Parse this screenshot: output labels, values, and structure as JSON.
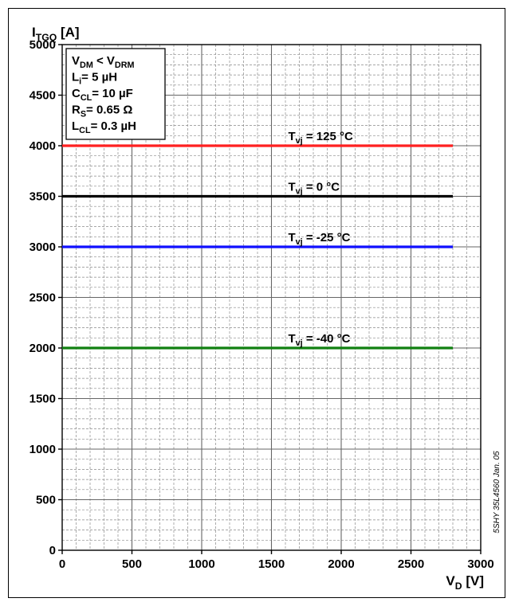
{
  "chart_data": {
    "type": "line",
    "y_title": {
      "main": "I",
      "sub": "TGQ",
      "unit": " [A]"
    },
    "x_title": {
      "main": "V",
      "sub": "D",
      "unit": " [V]"
    },
    "xlim": [
      0,
      3000
    ],
    "ylim": [
      0,
      5000
    ],
    "x_ticks": [
      "0",
      "500",
      "1000",
      "1500",
      "2000",
      "2500",
      "3000"
    ],
    "y_ticks": [
      "0",
      "500",
      "1000",
      "1500",
      "2000",
      "2500",
      "3000",
      "3500",
      "4000",
      "4500",
      "5000"
    ],
    "grid": true,
    "series": [
      {
        "label": {
          "main": "T",
          "sub": "vj",
          "rest": " = 125 °C"
        },
        "color": "#ff2020",
        "x": [
          0,
          2800
        ],
        "y": [
          4000,
          4000
        ],
        "label_x": 1620,
        "label_y": 4000
      },
      {
        "label": {
          "main": "T",
          "sub": "vj",
          "rest": " = 0 °C"
        },
        "color": "#000000",
        "x": [
          0,
          2800
        ],
        "y": [
          3500,
          3500
        ],
        "label_x": 1620,
        "label_y": 3500
      },
      {
        "label": {
          "main": "T",
          "sub": "vj",
          "rest": " = -25 °C"
        },
        "color": "#1010ff",
        "x": [
          0,
          2800
        ],
        "y": [
          3000,
          3000
        ],
        "label_x": 1620,
        "label_y": 3000
      },
      {
        "label": {
          "main": "T",
          "sub": "vj",
          "rest": " = -40 °C"
        },
        "color": "#108010",
        "x": [
          0,
          2800
        ],
        "y": [
          2000,
          2000
        ],
        "label_x": 1620,
        "label_y": 2000
      }
    ],
    "conditions": [
      [
        {
          "t": "V"
        },
        {
          "t": "DM",
          "sub": true
        },
        {
          "t": " < V"
        },
        {
          "t": "DRM",
          "sub": true
        }
      ],
      [
        {
          "t": "L"
        },
        {
          "t": "i",
          "sub": true
        },
        {
          "t": "= 5 µH"
        }
      ],
      [
        {
          "t": "C"
        },
        {
          "t": "CL",
          "sub": true
        },
        {
          "t": "= 10 µF"
        }
      ],
      [
        {
          "t": "R"
        },
        {
          "t": "S",
          "sub": true
        },
        {
          "t": "= 0.65 Ω"
        }
      ],
      [
        {
          "t": "L"
        },
        {
          "t": "CL",
          "sub": true
        },
        {
          "t": "= 0.3 µH"
        }
      ]
    ],
    "side_note": "5SHY 35L4560 Jan. 05"
  }
}
